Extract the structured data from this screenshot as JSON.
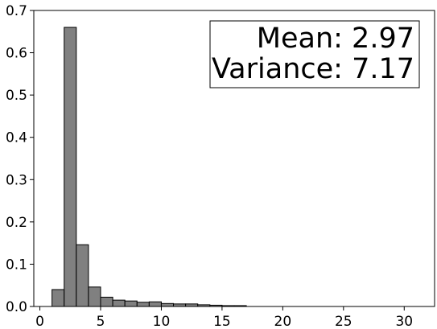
{
  "chart_data": {
    "type": "bar",
    "bin_width": 1,
    "x": [
      1,
      2,
      3,
      4,
      5,
      6,
      7,
      8,
      9,
      10,
      11,
      12,
      13,
      14,
      15,
      16
    ],
    "values": [
      0.04,
      0.66,
      0.146,
      0.046,
      0.022,
      0.015,
      0.013,
      0.01,
      0.011,
      0.007,
      0.006,
      0.006,
      0.004,
      0.003,
      0.002,
      0.002
    ],
    "xlim": [
      -0.5,
      32.5
    ],
    "ylim": [
      0,
      0.7
    ],
    "x_ticks": [
      "0",
      "5",
      "10",
      "15",
      "20",
      "25",
      "30"
    ],
    "y_ticks": [
      "0.0",
      "0.1",
      "0.2",
      "0.3",
      "0.4",
      "0.5",
      "0.6",
      "0.7"
    ],
    "bar_color": "#808080",
    "edge_color": "#000000",
    "grid": false,
    "legend_placement": "top-right",
    "annotations": [
      "Mean: 2.97",
      "Variance: 7.17"
    ]
  }
}
